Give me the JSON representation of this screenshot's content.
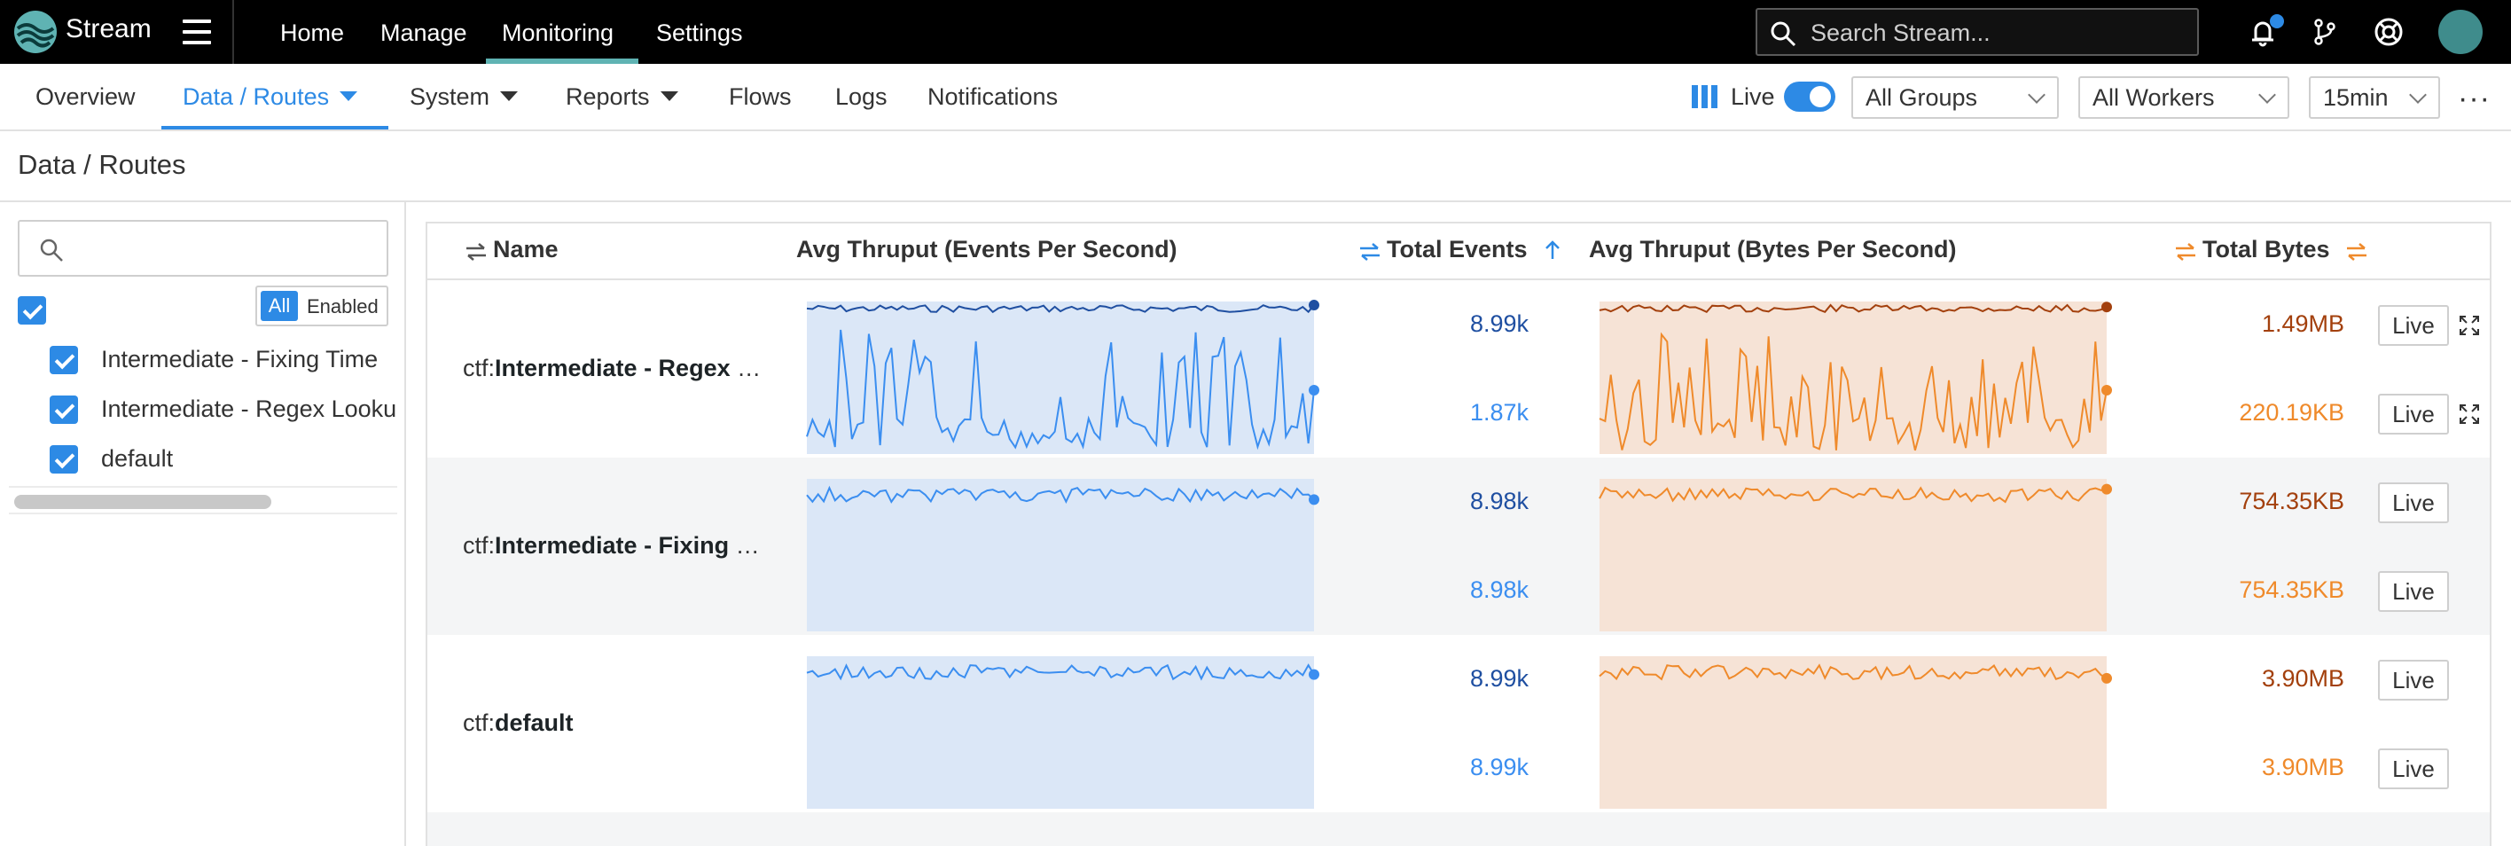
{
  "colors": {
    "accent": "#2d8ae5",
    "events_dark": "#1f4fa1",
    "events_light": "#3b8ef0",
    "bytes_dark": "#a3400d",
    "bytes_light": "#ef8a2b",
    "events_fill": "#dbe7f7",
    "bytes_fill": "#f6e3d6"
  },
  "topbar": {
    "brand": "Stream",
    "nav": [
      "Home",
      "Manage",
      "Monitoring",
      "Settings"
    ],
    "active_nav": "Monitoring",
    "search_placeholder": "Search Stream..."
  },
  "subnav": {
    "items": [
      {
        "label": "Overview"
      },
      {
        "label": "Data / Routes",
        "active": true
      },
      {
        "label": "System"
      },
      {
        "label": "Reports"
      },
      {
        "label": "Flows"
      },
      {
        "label": "Logs"
      },
      {
        "label": "Notifications"
      }
    ],
    "live_label": "Live",
    "live_on": true,
    "groups": "All Groups",
    "workers": "All Workers",
    "time_range": "15min"
  },
  "breadcrumb": {
    "parent": "Data",
    "sep": " / ",
    "current": "Routes"
  },
  "filter": {
    "search_placeholder": "",
    "seg_all": "All",
    "seg_enabled": "Enabled",
    "items": [
      "Intermediate - Fixing Time",
      "Intermediate - Regex Lookup",
      "default"
    ]
  },
  "table": {
    "headers": {
      "name": "Name",
      "avg_events": "Avg Thruput (Events Per Second)",
      "total_events": "Total Events",
      "avg_bytes": "Avg Thruput (Bytes Per Second)",
      "total_bytes": "Total Bytes"
    },
    "rows": [
      {
        "prefix": "ctf:",
        "name": "Intermediate - Regex Lookup",
        "events_in": "8.99k",
        "events_out": "1.87k",
        "bytes_in": "1.49MB",
        "bytes_out": "220.19KB",
        "live_in": "Live",
        "live_out": "Live"
      },
      {
        "prefix": "ctf:",
        "name": "Intermediate - Fixing Time",
        "events_in": "8.98k",
        "events_out": "8.98k",
        "bytes_in": "754.35KB",
        "bytes_out": "754.35KB",
        "live_in": "Live",
        "live_out": "Live"
      },
      {
        "prefix": "ctf:",
        "name": "default",
        "events_in": "8.99k",
        "events_out": "8.99k",
        "bytes_in": "3.90MB",
        "bytes_out": "3.90MB",
        "live_in": "Live",
        "live_out": "Live"
      }
    ]
  }
}
